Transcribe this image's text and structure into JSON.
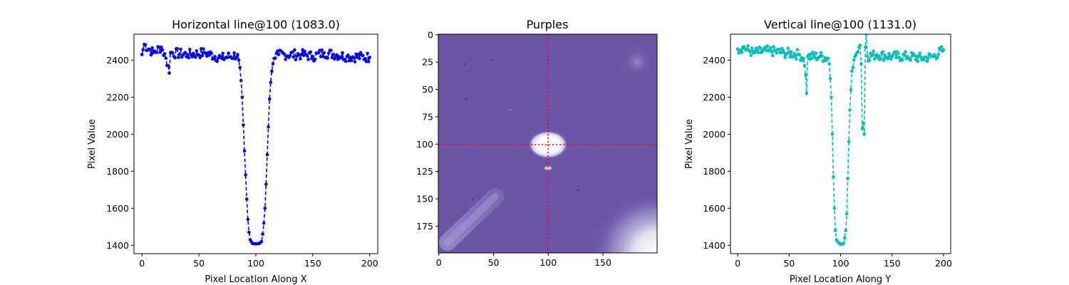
{
  "colors": {
    "left_series": "#0000ff",
    "right_series": "#00bfbf",
    "crosshair": "#ff0000",
    "image_base": "#6a55a6"
  },
  "chart_data": [
    {
      "type": "line",
      "title": "Horizontal line@100 (1083.0)",
      "xlabel": "Pixel Location Along X",
      "ylabel": "Pixel Value",
      "xlim": [
        -7,
        207
      ],
      "ylim": [
        1355,
        2540
      ],
      "xticks": [
        0,
        50,
        100,
        150,
        200
      ],
      "yticks": [
        1400,
        1600,
        1800,
        2000,
        2200,
        2400
      ],
      "style": "dashed line with dot markers",
      "key_points": [
        [
          0,
          2430
        ],
        [
          2,
          2485
        ],
        [
          10,
          2440
        ],
        [
          17,
          2470
        ],
        [
          21,
          2410
        ],
        [
          23,
          2370
        ],
        [
          24,
          2330
        ],
        [
          25,
          2440
        ],
        [
          40,
          2430
        ],
        [
          55,
          2440
        ],
        [
          70,
          2410
        ],
        [
          84,
          2430
        ],
        [
          85,
          2400
        ],
        [
          86,
          2360
        ],
        [
          87,
          2290
        ],
        [
          88,
          2200
        ],
        [
          89,
          2050
        ],
        [
          90,
          1910
        ],
        [
          91,
          1780
        ],
        [
          92,
          1650
        ],
        [
          93,
          1540
        ],
        [
          94,
          1470
        ],
        [
          95,
          1430
        ],
        [
          97,
          1410
        ],
        [
          100,
          1408
        ],
        [
          103,
          1410
        ],
        [
          105,
          1420
        ],
        [
          106,
          1460
        ],
        [
          107,
          1520
        ],
        [
          108,
          1600
        ],
        [
          109,
          1730
        ],
        [
          110,
          1890
        ],
        [
          111,
          2040
        ],
        [
          112,
          2190
        ],
        [
          113,
          2280
        ],
        [
          114,
          2340
        ],
        [
          115,
          2380
        ],
        [
          117,
          2410
        ],
        [
          120,
          2430
        ],
        [
          140,
          2430
        ],
        [
          150,
          2420
        ],
        [
          160,
          2440
        ],
        [
          180,
          2420
        ],
        [
          200,
          2415
        ]
      ]
    },
    {
      "type": "heatmap",
      "title": "Purples",
      "xlim": [
        -0.5,
        199.5
      ],
      "ylim": [
        199.5,
        -0.5
      ],
      "xticks": [
        0,
        50,
        100,
        150
      ],
      "yticks": [
        0,
        25,
        50,
        75,
        100,
        125,
        150,
        175
      ],
      "crosshair": {
        "x": 100,
        "y": 100,
        "style": "dotted"
      },
      "features": [
        {
          "kind": "bright-spot",
          "x": 100,
          "y": 100
        },
        {
          "kind": "faint-blob",
          "x": 185,
          "y": 25
        },
        {
          "kind": "small-spot",
          "x": 100,
          "y": 122
        },
        {
          "kind": "diagonal-streak",
          "from": [
            10,
            190
          ],
          "to": [
            50,
            150
          ]
        },
        {
          "kind": "bright-corner",
          "x": 195,
          "y": 195
        }
      ]
    },
    {
      "type": "line",
      "title": "Vertical line@100 (1131.0)",
      "xlabel": "Pixel Location Along Y",
      "ylabel": "Pixel Value",
      "xlim": [
        -7,
        207
      ],
      "ylim": [
        1355,
        2540
      ],
      "xticks": [
        0,
        50,
        100,
        150,
        200
      ],
      "yticks": [
        1400,
        1600,
        1800,
        2000,
        2200,
        2400
      ],
      "style": "dashed line with dot markers",
      "key_points": [
        [
          0,
          2460
        ],
        [
          5,
          2470
        ],
        [
          15,
          2440
        ],
        [
          30,
          2450
        ],
        [
          45,
          2440
        ],
        [
          60,
          2430
        ],
        [
          64,
          2410
        ],
        [
          65,
          2370
        ],
        [
          66,
          2320
        ],
        [
          67,
          2220
        ],
        [
          68,
          2420
        ],
        [
          80,
          2420
        ],
        [
          88,
          2410
        ],
        [
          89,
          2380
        ],
        [
          90,
          2300
        ],
        [
          91,
          2200
        ],
        [
          92,
          2000
        ],
        [
          93,
          1770
        ],
        [
          94,
          1600
        ],
        [
          95,
          1480
        ],
        [
          96,
          1430
        ],
        [
          97,
          1420
        ],
        [
          100,
          1405
        ],
        [
          103,
          1410
        ],
        [
          104,
          1440
        ],
        [
          105,
          1480
        ],
        [
          106,
          1570
        ],
        [
          107,
          1760
        ],
        [
          108,
          1960
        ],
        [
          109,
          2130
        ],
        [
          110,
          2240
        ],
        [
          111,
          2340
        ],
        [
          112,
          2360
        ],
        [
          113,
          2400
        ],
        [
          114,
          2420
        ],
        [
          116,
          2440
        ],
        [
          118,
          2470
        ],
        [
          119,
          2480
        ],
        [
          120,
          2380
        ],
        [
          121,
          2030
        ],
        [
          122,
          2060
        ],
        [
          123,
          2000
        ],
        [
          124,
          2470
        ],
        [
          125,
          2540
        ],
        [
          126,
          2420
        ],
        [
          135,
          2430
        ],
        [
          150,
          2420
        ],
        [
          165,
          2420
        ],
        [
          180,
          2410
        ],
        [
          190,
          2420
        ],
        [
          200,
          2455
        ]
      ]
    }
  ]
}
